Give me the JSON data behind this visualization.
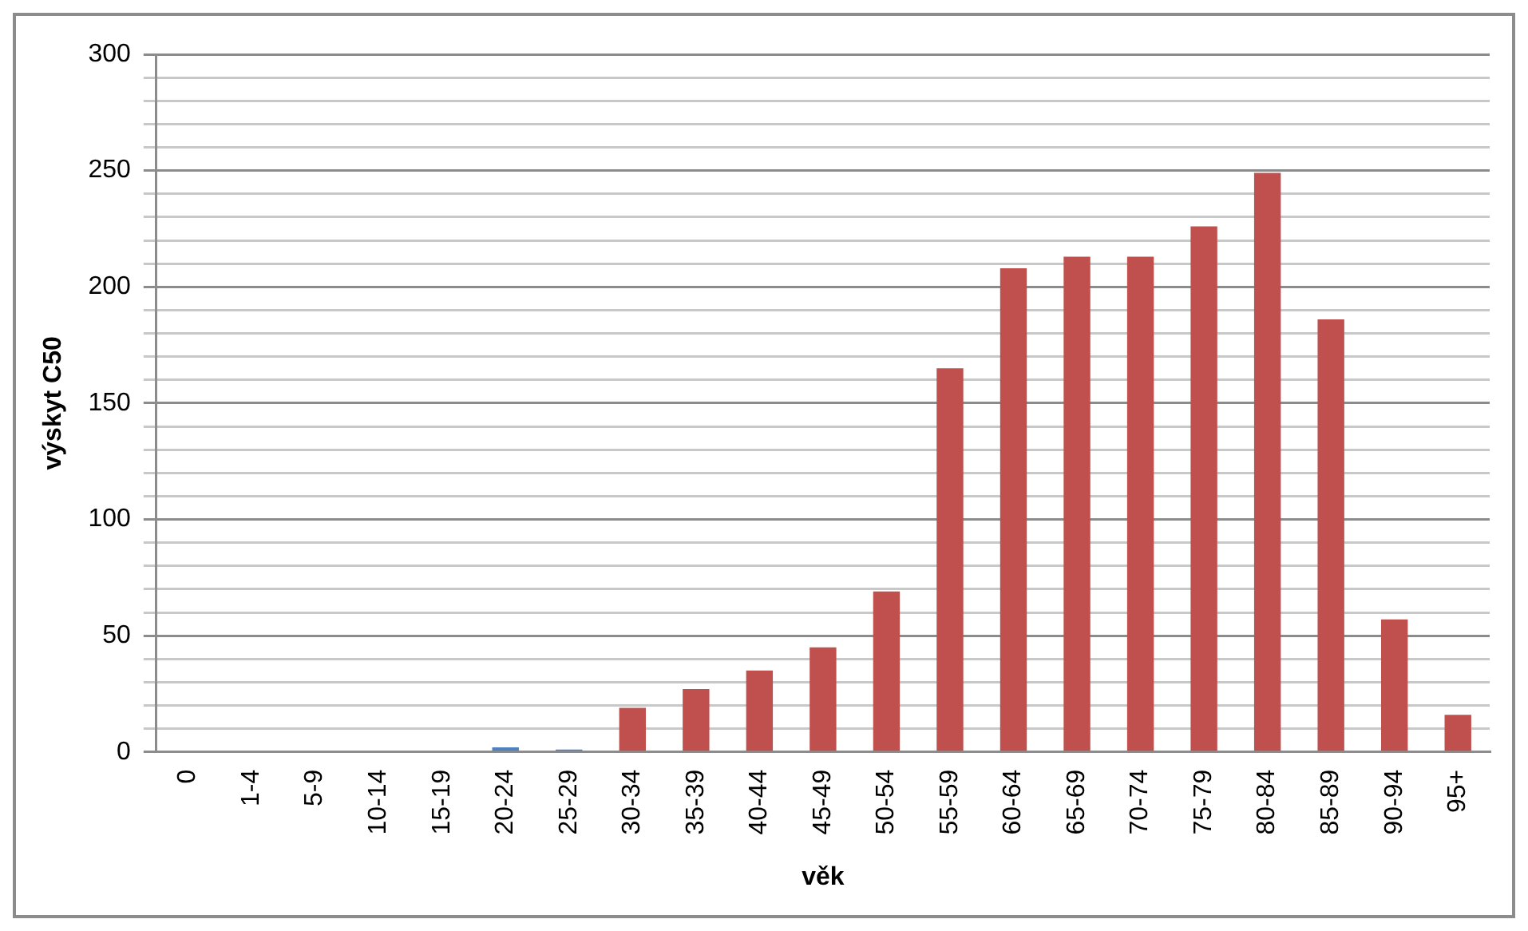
{
  "chart_data": {
    "type": "bar",
    "xlabel": "věk",
    "ylabel": "výskyt C50",
    "categories": [
      "0",
      "1-4",
      "5-9",
      "10-14",
      "15-19",
      "20-24",
      "25-29",
      "30-34",
      "35-39",
      "40-44",
      "45-49",
      "50-54",
      "55-59",
      "60-64",
      "65-69",
      "70-74",
      "75-79",
      "80-84",
      "85-89",
      "90-94",
      "95+"
    ],
    "values": [
      0,
      0,
      0,
      0,
      0,
      2,
      1,
      19,
      27,
      35,
      45,
      69,
      165,
      208,
      213,
      213,
      226,
      249,
      186,
      57,
      16
    ],
    "colors": [
      "#4f81bd",
      "#4f81bd",
      "#4f81bd",
      "#4f81bd",
      "#4f81bd",
      "#4f81bd",
      "#4f81bd",
      "#c0504d",
      "#c0504d",
      "#c0504d",
      "#c0504d",
      "#c0504d",
      "#c0504d",
      "#c0504d",
      "#c0504d",
      "#c0504d",
      "#c0504d",
      "#c0504d",
      "#c0504d",
      "#c0504d",
      "#c0504d"
    ],
    "ylim": [
      0,
      300
    ],
    "yticks": [
      0,
      {
        "value": 10,
        "label": null
      },
      {
        "value": 20,
        "label": null
      },
      {
        "value": 30,
        "label": null
      },
      {
        "value": 40,
        "label": null
      },
      50,
      {
        "value": 60,
        "label": null
      },
      {
        "value": 70,
        "label": null
      },
      {
        "value": 80,
        "label": null
      },
      {
        "value": 90,
        "label": null
      },
      100,
      {
        "value": 110,
        "label": null
      },
      {
        "value": 120,
        "label": null
      },
      {
        "value": 130,
        "label": null
      },
      {
        "value": 140,
        "label": null
      },
      150,
      {
        "value": 160,
        "label": null
      },
      {
        "value": 170,
        "label": null
      },
      {
        "value": 180,
        "label": null
      },
      {
        "value": 190,
        "label": null
      },
      200,
      {
        "value": 210,
        "label": null
      },
      {
        "value": 220,
        "label": null
      },
      {
        "value": 230,
        "label": null
      },
      {
        "value": 240,
        "label": null
      },
      250,
      {
        "value": 260,
        "label": null
      },
      {
        "value": 270,
        "label": null
      },
      {
        "value": 280,
        "label": null
      },
      {
        "value": 290,
        "label": null
      },
      300
    ],
    "grid": "y",
    "legend": false
  }
}
